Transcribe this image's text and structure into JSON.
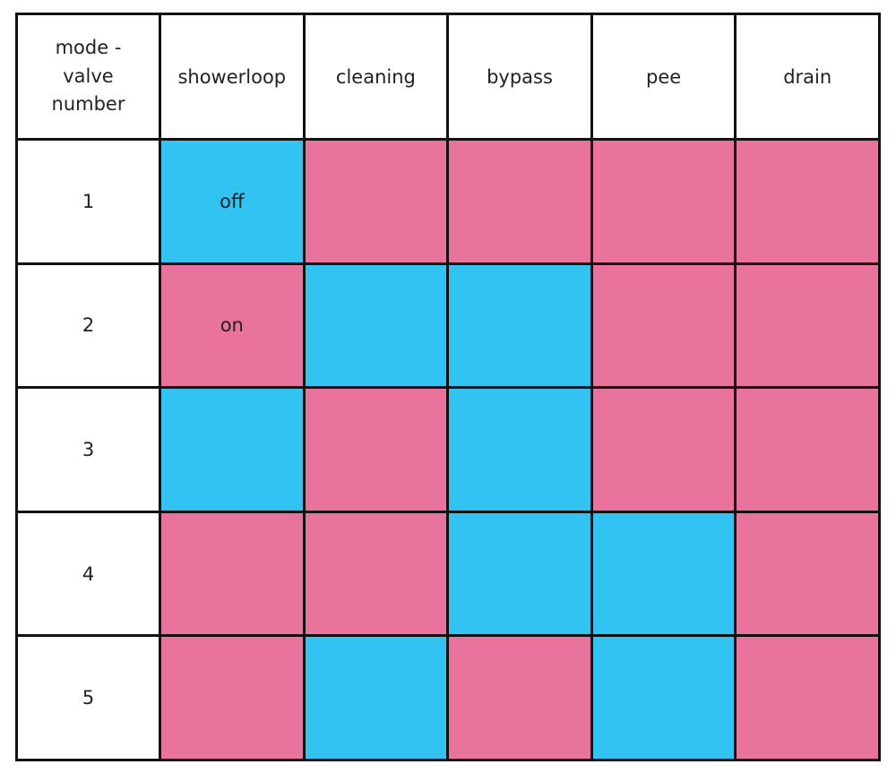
{
  "table": {
    "header": [
      "mode - valve number",
      "showerloop",
      "cleaning",
      "bypass",
      "pee",
      "drain"
    ],
    "rows": [
      {
        "label": "1",
        "cells": [
          {
            "color": "#33c3f0",
            "text": "off"
          },
          {
            "color": "#e8739c"
          },
          {
            "color": "#e8739c"
          },
          {
            "color": "#e8739c"
          },
          {
            "color": "#e8739c"
          }
        ]
      },
      {
        "label": "2",
        "cells": [
          {
            "color": "#e8739c",
            "text": "on"
          },
          {
            "color": "#33c3f0"
          },
          {
            "color": "#33c3f0"
          },
          {
            "color": "#e8739c"
          },
          {
            "color": "#e8739c"
          }
        ]
      },
      {
        "label": "3",
        "cells": [
          {
            "color": "#33c3f0"
          },
          {
            "color": "#e8739c"
          },
          {
            "color": "#33c3f0"
          },
          {
            "color": "#e8739c"
          },
          {
            "color": "#e8739c"
          }
        ]
      },
      {
        "label": "4",
        "cells": [
          {
            "color": "#e8739c"
          },
          {
            "color": "#e8739c"
          },
          {
            "color": "#33c3f0"
          },
          {
            "color": "#33c3f0"
          },
          {
            "color": "#e8739c"
          }
        ]
      },
      {
        "label": "5",
        "cells": [
          {
            "color": "#e8739c"
          },
          {
            "color": "#33c3f0"
          },
          {
            "color": "#e8739c"
          },
          {
            "color": "#33c3f0"
          },
          {
            "color": "#e8739c"
          }
        ]
      }
    ]
  }
}
